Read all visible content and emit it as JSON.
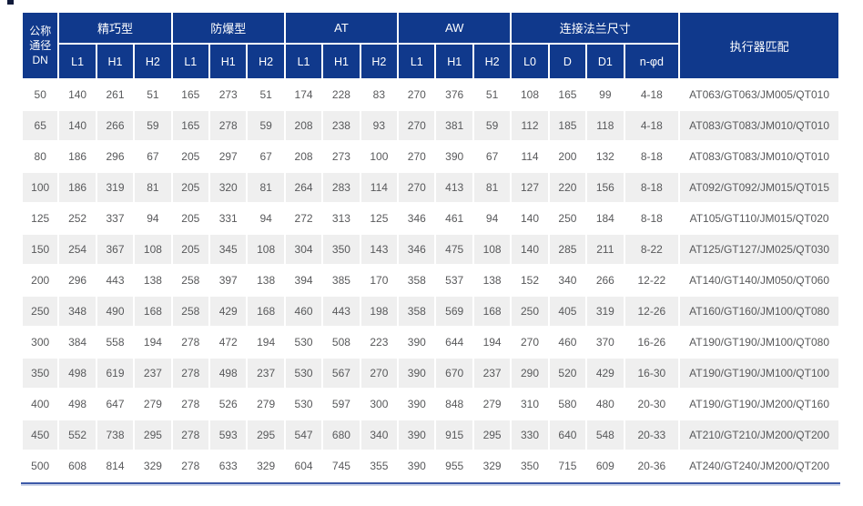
{
  "colors": {
    "header_bg": "#10398c",
    "stripe_bg": "#efefef",
    "text": "#58595b",
    "bottom_rule": "#3d5aa8"
  },
  "table": {
    "header": {
      "dn_label": "公称\n通径\nDN",
      "groups": [
        {
          "label": "精巧型",
          "cols": [
            "L1",
            "H1",
            "H2"
          ]
        },
        {
          "label": "防爆型",
          "cols": [
            "L1",
            "H1",
            "H2"
          ]
        },
        {
          "label": "AT",
          "cols": [
            "L1",
            "H1",
            "H2"
          ]
        },
        {
          "label": "AW",
          "cols": [
            "L1",
            "H1",
            "H2"
          ]
        },
        {
          "label": "连接法兰尺寸",
          "cols": [
            "L0",
            "D",
            "D1",
            "n-φd"
          ]
        }
      ],
      "actuator_label": "执行器匹配"
    },
    "rows": [
      [
        "50",
        "140",
        "261",
        "51",
        "165",
        "273",
        "51",
        "174",
        "228",
        "83",
        "270",
        "376",
        "51",
        "108",
        "165",
        "99",
        "4-18",
        "AT063/GT063/JM005/QT010"
      ],
      [
        "65",
        "140",
        "266",
        "59",
        "165",
        "278",
        "59",
        "208",
        "238",
        "93",
        "270",
        "381",
        "59",
        "112",
        "185",
        "118",
        "4-18",
        "AT083/GT083/JM010/QT010"
      ],
      [
        "80",
        "186",
        "296",
        "67",
        "205",
        "297",
        "67",
        "208",
        "273",
        "100",
        "270",
        "390",
        "67",
        "114",
        "200",
        "132",
        "8-18",
        "AT083/GT083/JM010/QT010"
      ],
      [
        "100",
        "186",
        "319",
        "81",
        "205",
        "320",
        "81",
        "264",
        "283",
        "114",
        "270",
        "413",
        "81",
        "127",
        "220",
        "156",
        "8-18",
        "AT092/GT092/JM015/QT015"
      ],
      [
        "125",
        "252",
        "337",
        "94",
        "205",
        "331",
        "94",
        "272",
        "313",
        "125",
        "346",
        "461",
        "94",
        "140",
        "250",
        "184",
        "8-18",
        "AT105/GT110/JM015/QT020"
      ],
      [
        "150",
        "254",
        "367",
        "108",
        "205",
        "345",
        "108",
        "304",
        "350",
        "143",
        "346",
        "475",
        "108",
        "140",
        "285",
        "211",
        "8-22",
        "AT125/GT127/JM025/QT030"
      ],
      [
        "200",
        "296",
        "443",
        "138",
        "258",
        "397",
        "138",
        "394",
        "385",
        "170",
        "358",
        "537",
        "138",
        "152",
        "340",
        "266",
        "12-22",
        "AT140/GT140/JM050/QT060"
      ],
      [
        "250",
        "348",
        "490",
        "168",
        "258",
        "429",
        "168",
        "460",
        "443",
        "198",
        "358",
        "569",
        "168",
        "250",
        "405",
        "319",
        "12-26",
        "AT160/GT160/JM100/QT080"
      ],
      [
        "300",
        "384",
        "558",
        "194",
        "278",
        "472",
        "194",
        "530",
        "508",
        "223",
        "390",
        "644",
        "194",
        "270",
        "460",
        "370",
        "16-26",
        "AT190/GT190/JM100/QT080"
      ],
      [
        "350",
        "498",
        "619",
        "237",
        "278",
        "498",
        "237",
        "530",
        "567",
        "270",
        "390",
        "670",
        "237",
        "290",
        "520",
        "429",
        "16-30",
        "AT190/GT190/JM100/QT100"
      ],
      [
        "400",
        "498",
        "647",
        "279",
        "278",
        "526",
        "279",
        "530",
        "597",
        "300",
        "390",
        "848",
        "279",
        "310",
        "580",
        "480",
        "20-30",
        "AT190/GT190/JM200/QT160"
      ],
      [
        "450",
        "552",
        "738",
        "295",
        "278",
        "593",
        "295",
        "547",
        "680",
        "340",
        "390",
        "915",
        "295",
        "330",
        "640",
        "548",
        "20-33",
        "AT210/GT210/JM200/QT200"
      ],
      [
        "500",
        "608",
        "814",
        "329",
        "278",
        "633",
        "329",
        "604",
        "745",
        "355",
        "390",
        "955",
        "329",
        "350",
        "715",
        "609",
        "20-36",
        "AT240/GT240/JM200/QT200"
      ]
    ]
  }
}
